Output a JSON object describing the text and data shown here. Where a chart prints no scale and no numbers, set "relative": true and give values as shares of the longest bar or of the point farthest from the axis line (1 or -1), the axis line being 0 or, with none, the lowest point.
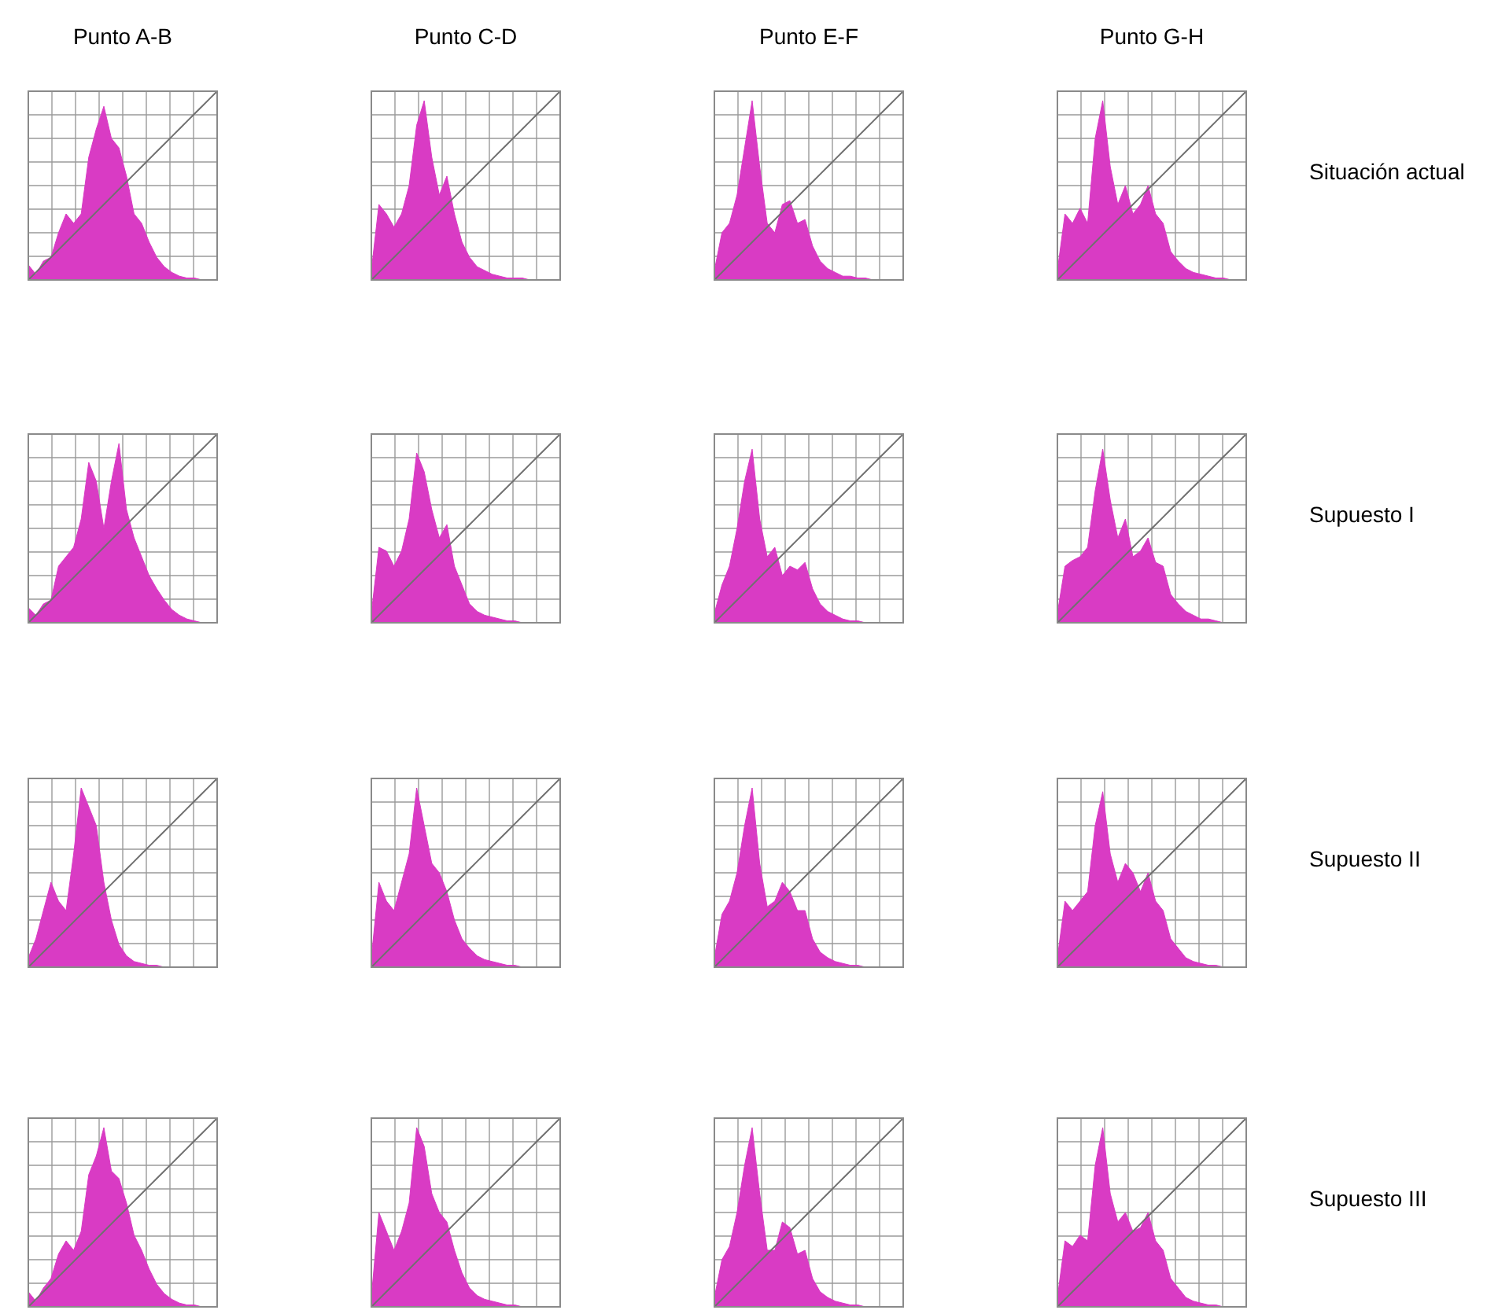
{
  "chart_data": [
    {
      "type": "area",
      "title": "Punto A-B",
      "relative": true,
      "grid": true,
      "categories": [
        null,
        null,
        null,
        null,
        null,
        null,
        null,
        null,
        null,
        null,
        null,
        null,
        null,
        null,
        null,
        null,
        null,
        null,
        null,
        null,
        null,
        null,
        null,
        null,
        null,
        null
      ],
      "series": [
        {
          "color": "#d93bc4",
          "values": [
            0.08,
            0.03,
            0.1,
            0.12,
            0.25,
            0.35,
            0.3,
            0.35,
            0.65,
            0.8,
            0.92,
            0.75,
            0.7,
            0.55,
            0.35,
            0.3,
            0.2,
            0.12,
            0.07,
            0.04,
            0.02,
            0.01,
            0.01,
            0,
            0,
            0
          ]
        },
        {
          "type": "line",
          "color": "#707070",
          "values": [
            0,
            0.04,
            0.08,
            0.12,
            0.16,
            0.2,
            0.24,
            0.28,
            0.32,
            0.36,
            0.4,
            0.44,
            0.48,
            0.52,
            0.56,
            0.6,
            0.64,
            0.68,
            0.72,
            0.76,
            0.8,
            0.84,
            0.88,
            0.92,
            0.96,
            1
          ]
        }
      ]
    },
    {
      "type": "area",
      "title": "Punto C-D",
      "relative": true,
      "grid": true,
      "categories": [
        null,
        null,
        null,
        null,
        null,
        null,
        null,
        null,
        null,
        null,
        null,
        null,
        null,
        null,
        null,
        null,
        null,
        null,
        null,
        null,
        null,
        null,
        null,
        null,
        null,
        null
      ],
      "series": [
        {
          "color": "#d93bc4",
          "values": [
            0.05,
            0.4,
            0.35,
            0.28,
            0.35,
            0.5,
            0.82,
            0.95,
            0.65,
            0.45,
            0.55,
            0.35,
            0.2,
            0.12,
            0.07,
            0.05,
            0.03,
            0.02,
            0.01,
            0.01,
            0.01,
            0,
            0,
            0,
            0,
            0
          ]
        },
        {
          "type": "line",
          "color": "#707070",
          "values": [
            0,
            0.04,
            0.08,
            0.12,
            0.16,
            0.2,
            0.24,
            0.28,
            0.32,
            0.36,
            0.4,
            0.44,
            0.48,
            0.52,
            0.56,
            0.6,
            0.64,
            0.68,
            0.72,
            0.76,
            0.8,
            0.84,
            0.88,
            0.92,
            0.96,
            1
          ]
        }
      ]
    },
    {
      "type": "area",
      "title": "Punto E-F",
      "relative": true,
      "grid": true,
      "categories": [
        null,
        null,
        null,
        null,
        null,
        null,
        null,
        null,
        null,
        null,
        null,
        null,
        null,
        null,
        null,
        null,
        null,
        null,
        null,
        null,
        null,
        null,
        null,
        null,
        null,
        null
      ],
      "series": [
        {
          "color": "#d93bc4",
          "values": [
            0.05,
            0.25,
            0.3,
            0.45,
            0.7,
            0.95,
            0.6,
            0.3,
            0.25,
            0.4,
            0.42,
            0.3,
            0.32,
            0.18,
            0.1,
            0.06,
            0.04,
            0.02,
            0.02,
            0.01,
            0.01,
            0,
            0,
            0,
            0,
            0
          ]
        },
        {
          "type": "line",
          "color": "#707070",
          "values": [
            0,
            0.04,
            0.08,
            0.12,
            0.16,
            0.2,
            0.24,
            0.28,
            0.32,
            0.36,
            0.4,
            0.44,
            0.48,
            0.52,
            0.56,
            0.6,
            0.64,
            0.68,
            0.72,
            0.76,
            0.8,
            0.84,
            0.88,
            0.92,
            0.96,
            1
          ]
        }
      ]
    },
    {
      "type": "area",
      "title": "Punto G-H",
      "annotations": [
        "Situación actual"
      ],
      "relative": true,
      "grid": true,
      "categories": [
        null,
        null,
        null,
        null,
        null,
        null,
        null,
        null,
        null,
        null,
        null,
        null,
        null,
        null,
        null,
        null,
        null,
        null,
        null,
        null,
        null,
        null,
        null,
        null,
        null,
        null
      ],
      "series": [
        {
          "color": "#d93bc4",
          "values": [
            0.05,
            0.35,
            0.3,
            0.38,
            0.3,
            0.75,
            0.95,
            0.6,
            0.4,
            0.5,
            0.35,
            0.4,
            0.5,
            0.35,
            0.3,
            0.15,
            0.1,
            0.06,
            0.04,
            0.03,
            0.02,
            0.01,
            0.01,
            0,
            0,
            0
          ]
        },
        {
          "type": "line",
          "color": "#707070",
          "values": [
            0,
            0.04,
            0.08,
            0.12,
            0.16,
            0.2,
            0.24,
            0.28,
            0.32,
            0.36,
            0.4,
            0.44,
            0.48,
            0.52,
            0.56,
            0.6,
            0.64,
            0.68,
            0.72,
            0.76,
            0.8,
            0.84,
            0.88,
            0.92,
            0.96,
            1
          ]
        }
      ]
    },
    {
      "type": "area",
      "relative": true,
      "grid": true,
      "categories": [
        null,
        null,
        null,
        null,
        null,
        null,
        null,
        null,
        null,
        null,
        null,
        null,
        null,
        null,
        null,
        null,
        null,
        null,
        null,
        null,
        null,
        null,
        null,
        null,
        null,
        null
      ],
      "series": [
        {
          "color": "#d93bc4",
          "values": [
            0.08,
            0.04,
            0.1,
            0.12,
            0.3,
            0.35,
            0.4,
            0.55,
            0.85,
            0.75,
            0.5,
            0.75,
            0.95,
            0.6,
            0.45,
            0.35,
            0.25,
            0.18,
            0.12,
            0.07,
            0.04,
            0.02,
            0.01,
            0,
            0,
            0
          ]
        },
        {
          "type": "line",
          "color": "#707070",
          "values": [
            0,
            0.04,
            0.08,
            0.12,
            0.16,
            0.2,
            0.24,
            0.28,
            0.32,
            0.36,
            0.4,
            0.44,
            0.48,
            0.52,
            0.56,
            0.6,
            0.64,
            0.68,
            0.72,
            0.76,
            0.8,
            0.84,
            0.88,
            0.92,
            0.96,
            1
          ]
        }
      ]
    },
    {
      "type": "area",
      "relative": true,
      "grid": true,
      "categories": [
        null,
        null,
        null,
        null,
        null,
        null,
        null,
        null,
        null,
        null,
        null,
        null,
        null,
        null,
        null,
        null,
        null,
        null,
        null,
        null,
        null,
        null,
        null,
        null,
        null,
        null
      ],
      "series": [
        {
          "color": "#d93bc4",
          "values": [
            0.05,
            0.4,
            0.38,
            0.3,
            0.38,
            0.55,
            0.9,
            0.8,
            0.6,
            0.45,
            0.52,
            0.3,
            0.2,
            0.1,
            0.06,
            0.04,
            0.03,
            0.02,
            0.01,
            0.01,
            0,
            0,
            0,
            0,
            0,
            0
          ]
        },
        {
          "type": "line",
          "color": "#707070",
          "values": [
            0,
            0.04,
            0.08,
            0.12,
            0.16,
            0.2,
            0.24,
            0.28,
            0.32,
            0.36,
            0.4,
            0.44,
            0.48,
            0.52,
            0.56,
            0.6,
            0.64,
            0.68,
            0.72,
            0.76,
            0.8,
            0.84,
            0.88,
            0.92,
            0.96,
            1
          ]
        }
      ]
    },
    {
      "type": "area",
      "relative": true,
      "grid": true,
      "categories": [
        null,
        null,
        null,
        null,
        null,
        null,
        null,
        null,
        null,
        null,
        null,
        null,
        null,
        null,
        null,
        null,
        null,
        null,
        null,
        null,
        null,
        null,
        null,
        null,
        null,
        null
      ],
      "series": [
        {
          "color": "#d93bc4",
          "values": [
            0.05,
            0.2,
            0.3,
            0.5,
            0.75,
            0.92,
            0.55,
            0.35,
            0.4,
            0.25,
            0.3,
            0.28,
            0.32,
            0.18,
            0.1,
            0.06,
            0.04,
            0.02,
            0.01,
            0.01,
            0,
            0,
            0,
            0,
            0,
            0
          ]
        },
        {
          "type": "line",
          "color": "#707070",
          "values": [
            0,
            0.04,
            0.08,
            0.12,
            0.16,
            0.2,
            0.24,
            0.28,
            0.32,
            0.36,
            0.4,
            0.44,
            0.48,
            0.52,
            0.56,
            0.6,
            0.64,
            0.68,
            0.72,
            0.76,
            0.8,
            0.84,
            0.88,
            0.92,
            0.96,
            1
          ]
        }
      ]
    },
    {
      "type": "area",
      "annotations": [
        "Supuesto I"
      ],
      "relative": true,
      "grid": true,
      "categories": [
        null,
        null,
        null,
        null,
        null,
        null,
        null,
        null,
        null,
        null,
        null,
        null,
        null,
        null,
        null,
        null,
        null,
        null,
        null,
        null,
        null,
        null,
        null,
        null,
        null,
        null
      ],
      "series": [
        {
          "color": "#d93bc4",
          "values": [
            0.05,
            0.3,
            0.33,
            0.35,
            0.4,
            0.7,
            0.92,
            0.65,
            0.45,
            0.55,
            0.35,
            0.38,
            0.45,
            0.32,
            0.3,
            0.15,
            0.1,
            0.06,
            0.04,
            0.02,
            0.02,
            0.01,
            0,
            0,
            0,
            0
          ]
        },
        {
          "type": "line",
          "color": "#707070",
          "values": [
            0,
            0.04,
            0.08,
            0.12,
            0.16,
            0.2,
            0.24,
            0.28,
            0.32,
            0.36,
            0.4,
            0.44,
            0.48,
            0.52,
            0.56,
            0.6,
            0.64,
            0.68,
            0.72,
            0.76,
            0.8,
            0.84,
            0.88,
            0.92,
            0.96,
            1
          ]
        }
      ]
    },
    {
      "type": "area",
      "relative": true,
      "grid": true,
      "categories": [
        null,
        null,
        null,
        null,
        null,
        null,
        null,
        null,
        null,
        null,
        null,
        null,
        null,
        null,
        null,
        null,
        null,
        null,
        null,
        null,
        null,
        null,
        null,
        null,
        null,
        null
      ],
      "series": [
        {
          "color": "#d93bc4",
          "values": [
            0.05,
            0.15,
            0.3,
            0.45,
            0.35,
            0.3,
            0.6,
            0.95,
            0.85,
            0.75,
            0.45,
            0.25,
            0.12,
            0.06,
            0.03,
            0.02,
            0.01,
            0.01,
            0,
            0,
            0,
            0,
            0,
            0,
            0,
            0
          ]
        },
        {
          "type": "line",
          "color": "#707070",
          "values": [
            0,
            0.04,
            0.08,
            0.12,
            0.16,
            0.2,
            0.24,
            0.28,
            0.32,
            0.36,
            0.4,
            0.44,
            0.48,
            0.52,
            0.56,
            0.6,
            0.64,
            0.68,
            0.72,
            0.76,
            0.8,
            0.84,
            0.88,
            0.92,
            0.96,
            1
          ]
        }
      ]
    },
    {
      "type": "area",
      "relative": true,
      "grid": true,
      "categories": [
        null,
        null,
        null,
        null,
        null,
        null,
        null,
        null,
        null,
        null,
        null,
        null,
        null,
        null,
        null,
        null,
        null,
        null,
        null,
        null,
        null,
        null,
        null,
        null,
        null,
        null
      ],
      "series": [
        {
          "color": "#d93bc4",
          "values": [
            0.05,
            0.45,
            0.35,
            0.3,
            0.45,
            0.6,
            0.95,
            0.75,
            0.55,
            0.5,
            0.4,
            0.25,
            0.15,
            0.1,
            0.06,
            0.04,
            0.03,
            0.02,
            0.01,
            0.01,
            0,
            0,
            0,
            0,
            0,
            0
          ]
        },
        {
          "type": "line",
          "color": "#707070",
          "values": [
            0,
            0.04,
            0.08,
            0.12,
            0.16,
            0.2,
            0.24,
            0.28,
            0.32,
            0.36,
            0.4,
            0.44,
            0.48,
            0.52,
            0.56,
            0.6,
            0.64,
            0.68,
            0.72,
            0.76,
            0.8,
            0.84,
            0.88,
            0.92,
            0.96,
            1
          ]
        }
      ]
    },
    {
      "type": "area",
      "relative": true,
      "grid": true,
      "categories": [
        null,
        null,
        null,
        null,
        null,
        null,
        null,
        null,
        null,
        null,
        null,
        null,
        null,
        null,
        null,
        null,
        null,
        null,
        null,
        null,
        null,
        null,
        null,
        null,
        null,
        null
      ],
      "series": [
        {
          "color": "#d93bc4",
          "values": [
            0.05,
            0.28,
            0.35,
            0.5,
            0.75,
            0.95,
            0.55,
            0.32,
            0.35,
            0.45,
            0.4,
            0.3,
            0.3,
            0.15,
            0.08,
            0.05,
            0.03,
            0.02,
            0.01,
            0.01,
            0,
            0,
            0,
            0,
            0,
            0
          ]
        },
        {
          "type": "line",
          "color": "#707070",
          "values": [
            0,
            0.04,
            0.08,
            0.12,
            0.16,
            0.2,
            0.24,
            0.28,
            0.32,
            0.36,
            0.4,
            0.44,
            0.48,
            0.52,
            0.56,
            0.6,
            0.64,
            0.68,
            0.72,
            0.76,
            0.8,
            0.84,
            0.88,
            0.92,
            0.96,
            1
          ]
        }
      ]
    },
    {
      "type": "area",
      "annotations": [
        "Supuesto II"
      ],
      "relative": true,
      "grid": true,
      "categories": [
        null,
        null,
        null,
        null,
        null,
        null,
        null,
        null,
        null,
        null,
        null,
        null,
        null,
        null,
        null,
        null,
        null,
        null,
        null,
        null,
        null,
        null,
        null,
        null,
        null,
        null
      ],
      "series": [
        {
          "color": "#d93bc4",
          "values": [
            0.05,
            0.35,
            0.3,
            0.35,
            0.4,
            0.75,
            0.93,
            0.6,
            0.45,
            0.55,
            0.5,
            0.4,
            0.5,
            0.35,
            0.3,
            0.15,
            0.1,
            0.05,
            0.03,
            0.02,
            0.01,
            0.01,
            0,
            0,
            0,
            0
          ]
        },
        {
          "type": "line",
          "color": "#707070",
          "values": [
            0,
            0.04,
            0.08,
            0.12,
            0.16,
            0.2,
            0.24,
            0.28,
            0.32,
            0.36,
            0.4,
            0.44,
            0.48,
            0.52,
            0.56,
            0.6,
            0.64,
            0.68,
            0.72,
            0.76,
            0.8,
            0.84,
            0.88,
            0.92,
            0.96,
            1
          ]
        }
      ]
    },
    {
      "type": "area",
      "relative": true,
      "grid": true,
      "categories": [
        null,
        null,
        null,
        null,
        null,
        null,
        null,
        null,
        null,
        null,
        null,
        null,
        null,
        null,
        null,
        null,
        null,
        null,
        null,
        null,
        null,
        null,
        null,
        null,
        null,
        null
      ],
      "series": [
        {
          "color": "#d93bc4",
          "values": [
            0.08,
            0.03,
            0.1,
            0.15,
            0.28,
            0.35,
            0.3,
            0.4,
            0.7,
            0.8,
            0.95,
            0.72,
            0.68,
            0.55,
            0.38,
            0.3,
            0.2,
            0.12,
            0.07,
            0.04,
            0.02,
            0.01,
            0.01,
            0,
            0,
            0
          ]
        },
        {
          "type": "line",
          "color": "#707070",
          "values": [
            0,
            0.04,
            0.08,
            0.12,
            0.16,
            0.2,
            0.24,
            0.28,
            0.32,
            0.36,
            0.4,
            0.44,
            0.48,
            0.52,
            0.56,
            0.6,
            0.64,
            0.68,
            0.72,
            0.76,
            0.8,
            0.84,
            0.88,
            0.92,
            0.96,
            1
          ]
        }
      ]
    },
    {
      "type": "area",
      "relative": true,
      "grid": true,
      "categories": [
        null,
        null,
        null,
        null,
        null,
        null,
        null,
        null,
        null,
        null,
        null,
        null,
        null,
        null,
        null,
        null,
        null,
        null,
        null,
        null,
        null,
        null,
        null,
        null,
        null,
        null
      ],
      "series": [
        {
          "color": "#d93bc4",
          "values": [
            0.05,
            0.5,
            0.4,
            0.3,
            0.4,
            0.55,
            0.95,
            0.85,
            0.6,
            0.5,
            0.45,
            0.3,
            0.18,
            0.1,
            0.06,
            0.04,
            0.03,
            0.02,
            0.01,
            0.01,
            0,
            0,
            0,
            0,
            0,
            0
          ]
        },
        {
          "type": "line",
          "color": "#707070",
          "values": [
            0,
            0.04,
            0.08,
            0.12,
            0.16,
            0.2,
            0.24,
            0.28,
            0.32,
            0.36,
            0.4,
            0.44,
            0.48,
            0.52,
            0.56,
            0.6,
            0.64,
            0.68,
            0.72,
            0.76,
            0.8,
            0.84,
            0.88,
            0.92,
            0.96,
            1
          ]
        }
      ]
    },
    {
      "type": "area",
      "relative": true,
      "grid": true,
      "categories": [
        null,
        null,
        null,
        null,
        null,
        null,
        null,
        null,
        null,
        null,
        null,
        null,
        null,
        null,
        null,
        null,
        null,
        null,
        null,
        null,
        null,
        null,
        null,
        null,
        null,
        null
      ],
      "series": [
        {
          "color": "#d93bc4",
          "values": [
            0.05,
            0.25,
            0.32,
            0.5,
            0.75,
            0.95,
            0.6,
            0.3,
            0.3,
            0.45,
            0.42,
            0.28,
            0.3,
            0.15,
            0.08,
            0.05,
            0.03,
            0.02,
            0.01,
            0.01,
            0,
            0,
            0,
            0,
            0,
            0
          ]
        },
        {
          "type": "line",
          "color": "#707070",
          "values": [
            0,
            0.04,
            0.08,
            0.12,
            0.16,
            0.2,
            0.24,
            0.28,
            0.32,
            0.36,
            0.4,
            0.44,
            0.48,
            0.52,
            0.56,
            0.6,
            0.64,
            0.68,
            0.72,
            0.76,
            0.8,
            0.84,
            0.88,
            0.92,
            0.96,
            1
          ]
        }
      ]
    },
    {
      "type": "area",
      "annotations": [
        "Supuesto III"
      ],
      "relative": true,
      "grid": true,
      "categories": [
        null,
        null,
        null,
        null,
        null,
        null,
        null,
        null,
        null,
        null,
        null,
        null,
        null,
        null,
        null,
        null,
        null,
        null,
        null,
        null,
        null,
        null,
        null,
        null,
        null,
        null
      ],
      "series": [
        {
          "color": "#d93bc4",
          "values": [
            0.05,
            0.35,
            0.32,
            0.38,
            0.35,
            0.75,
            0.95,
            0.6,
            0.45,
            0.5,
            0.4,
            0.42,
            0.5,
            0.35,
            0.3,
            0.15,
            0.1,
            0.05,
            0.03,
            0.02,
            0.01,
            0.01,
            0,
            0,
            0,
            0
          ]
        },
        {
          "type": "line",
          "color": "#707070",
          "values": [
            0,
            0.04,
            0.08,
            0.12,
            0.16,
            0.2,
            0.24,
            0.28,
            0.32,
            0.36,
            0.4,
            0.44,
            0.48,
            0.52,
            0.56,
            0.6,
            0.64,
            0.68,
            0.72,
            0.76,
            0.8,
            0.84,
            0.88,
            0.92,
            0.96,
            1
          ]
        }
      ]
    }
  ]
}
